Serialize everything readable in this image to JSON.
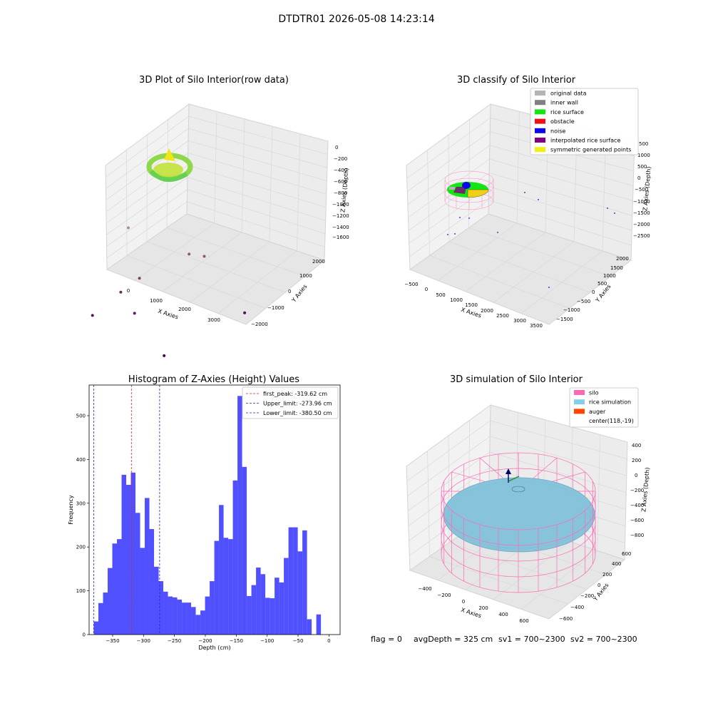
{
  "suptitle": "DTDTR01 2026-05-08 14:23:14",
  "status_line": {
    "flag": "flag = 0",
    "avg_depth": "avgDepth = 325 cm",
    "sv1": "sv1 = 700~2300",
    "sv2": "sv2 = 700~2300"
  },
  "chart_data": [
    {
      "id": "raw",
      "type": "scatter",
      "title": "3D Plot of Silo Interior(row data)",
      "xlabel": "X Axies",
      "ylabel": "Y Axies",
      "zlabel": "Z Axies (Depth)",
      "x_ticks": [
        "0",
        "1000",
        "2000",
        "3000"
      ],
      "y_ticks": [
        "2000",
        "1000",
        "0",
        "−1000",
        "−2000"
      ],
      "z_ticks": [
        "0",
        "−200",
        "−400",
        "−600",
        "−800",
        "−1000",
        "−1200",
        "−1400",
        "−1600"
      ],
      "zlim": [
        -1700,
        100
      ],
      "points": [
        {
          "x": 0,
          "y": 0,
          "z": -150
        },
        {
          "x": 1200,
          "y": 800,
          "z": -700
        },
        {
          "x": 1500,
          "y": 1000,
          "z": -750
        },
        {
          "x": 600,
          "y": -200,
          "z": -1000
        },
        {
          "x": 400,
          "y": -600,
          "z": -1200
        },
        {
          "x": 1200,
          "y": -900,
          "z": -1400
        },
        {
          "x": 200,
          "y": -1300,
          "z": -1500
        },
        {
          "x": 3100,
          "y": 800,
          "z": -1550
        },
        {
          "x": 3200,
          "y": -1800,
          "z": -1650
        }
      ]
    },
    {
      "id": "classify",
      "type": "scatter",
      "title": "3D classify of Silo Interior",
      "zlabel": "Z Axies (Depth)",
      "xlabel": "X Axies",
      "ylabel": "Y Axies",
      "x_ticks": [
        "−500",
        "0",
        "500",
        "1000",
        "1500",
        "2000",
        "2500",
        "3000",
        "3500"
      ],
      "y_ticks": [
        "2000",
        "1500",
        "1000",
        "500",
        "0",
        "−500",
        "−1000",
        "−1500"
      ],
      "z_ticks": [
        "1000",
        "500",
        "0",
        "−500",
        "−1000",
        "−1500",
        "−2000",
        "−2500"
      ],
      "z_partial_tick": "500",
      "legend": [
        {
          "label": "original data",
          "color": "#b4b4b4"
        },
        {
          "label": "inner wall",
          "color": "#808080"
        },
        {
          "label": "rice surface",
          "color": "#14e614"
        },
        {
          "label": "obstacle",
          "color": "#ee1111"
        },
        {
          "label": "noise",
          "color": "#0a0ae8"
        },
        {
          "label": "interpolated rice surface",
          "color": "#800080"
        },
        {
          "label": "symmetric generated points",
          "color": "#f0f014"
        }
      ]
    },
    {
      "id": "histogram",
      "type": "bar",
      "title": "Histogram of Z-Axies (Height) Values",
      "xlabel": "Depth (cm)",
      "ylabel": "Frequency",
      "xlim": [
        -388,
        18
      ],
      "ylim": [
        0,
        570
      ],
      "x_ticks": [
        -350,
        -300,
        -250,
        -200,
        -150,
        -100,
        -50,
        0
      ],
      "x_tick_labels": [
        "−350",
        "−300",
        "−250",
        "−200",
        "−150",
        "−100",
        "−50",
        "0"
      ],
      "y_ticks": [
        0,
        100,
        200,
        300,
        400,
        500
      ],
      "bin_start": -380.5,
      "bin_width": 7.5,
      "values": [
        30,
        72,
        96,
        152,
        208,
        218,
        365,
        342,
        370,
        278,
        198,
        312,
        241,
        155,
        122,
        98,
        87,
        85,
        80,
        73,
        73,
        63,
        45,
        55,
        87,
        122,
        214,
        296,
        221,
        218,
        352,
        545,
        383,
        88,
        113,
        153,
        138,
        84,
        83,
        130,
        119,
        175,
        245,
        245,
        190,
        238,
        35,
        0,
        46
      ],
      "color": "#5050ff",
      "lines": [
        {
          "label": "first_peak: -319.62 cm",
          "x": -319.62,
          "color": "#dd2222"
        },
        {
          "label": "Upper_limit: -273.96 cm",
          "x": -273.96,
          "color": "#2222cc"
        },
        {
          "label": "Lower_limit: -380.50 cm",
          "x": -380.5,
          "color": "#2222cc"
        }
      ]
    },
    {
      "id": "simulation",
      "type": "scatter",
      "title": "3D simulation of Silo Interior",
      "xlabel": "X Axies",
      "ylabel": "Y Axies",
      "zlabel": "Z Axies (Depth)",
      "x_ticks": [
        "−400",
        "−200",
        "0",
        "200",
        "400",
        "600"
      ],
      "y_ticks": [
        "600",
        "400",
        "200",
        "0",
        "−200",
        "−400",
        "−600"
      ],
      "z_ticks": [
        "400",
        "200",
        "0",
        "−200",
        "−400",
        "−600",
        "−800"
      ],
      "legend": [
        {
          "label": "silo",
          "color": "#ff69b4"
        },
        {
          "label": "rice simulation",
          "color": "#87ceeb"
        },
        {
          "label": "auger",
          "color": "#ff4500"
        },
        {
          "label": "center(118,-19)",
          "color": null
        }
      ]
    }
  ]
}
